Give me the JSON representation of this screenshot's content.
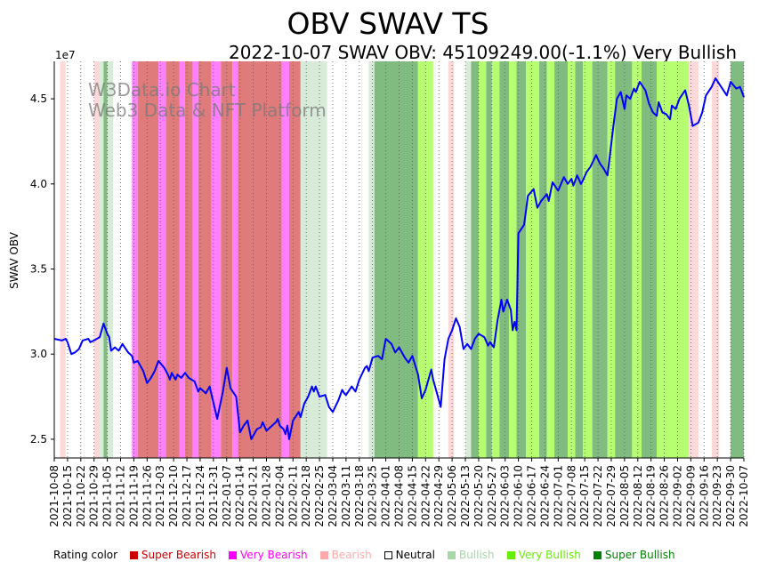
{
  "chart_data": {
    "type": "line",
    "title": "OBV SWAV TS",
    "subtitle": "2022-10-07 SWAV OBV: 45109249.00(-1.1%) Very Bullish",
    "ylabel": "SWAV OBV",
    "y_multiplier_label": "1e7",
    "ylim": [
      2.39,
      4.72
    ],
    "y_ticks": [
      2.5,
      3.0,
      3.5,
      4.0,
      4.5
    ],
    "y_tick_labels": [
      "2.5",
      "3.0",
      "3.5",
      "4.0",
      "4.5"
    ],
    "x_start": "2021-10-08",
    "x_end": "2022-10-07",
    "x_tick_labels": [
      "2021-10-08",
      "2021-10-15",
      "2021-10-22",
      "2021-10-29",
      "2021-11-05",
      "2021-11-12",
      "2021-11-19",
      "2021-11-26",
      "2021-12-03",
      "2021-12-10",
      "2021-12-17",
      "2021-12-24",
      "2021-12-31",
      "2022-01-07",
      "2022-01-14",
      "2022-01-21",
      "2022-01-28",
      "2022-02-04",
      "2022-02-11",
      "2022-02-18",
      "2022-02-25",
      "2022-03-04",
      "2022-03-11",
      "2022-03-18",
      "2022-03-25",
      "2022-04-01",
      "2022-04-08",
      "2022-04-15",
      "2022-04-22",
      "2022-04-29",
      "2022-05-06",
      "2022-05-13",
      "2022-05-20",
      "2022-05-27",
      "2022-06-03",
      "2022-06-10",
      "2022-06-17",
      "2022-06-24",
      "2022-07-01",
      "2022-07-08",
      "2022-07-15",
      "2022-07-22",
      "2022-07-29",
      "2022-08-05",
      "2022-08-12",
      "2022-08-19",
      "2022-08-26",
      "2022-09-02",
      "2022-09-09",
      "2022-09-16",
      "2022-09-23",
      "2022-09-30",
      "2022-10-07"
    ],
    "series": [
      {
        "name": "SWAV OBV",
        "color": "#0000ff",
        "points": [
          [
            "2021-10-08",
            3.09
          ],
          [
            "2021-10-12",
            3.08
          ],
          [
            "2021-10-14",
            3.09
          ],
          [
            "2021-10-15",
            3.07
          ],
          [
            "2021-10-17",
            3.0
          ],
          [
            "2021-10-19",
            3.01
          ],
          [
            "2021-10-21",
            3.03
          ],
          [
            "2021-10-23",
            3.08
          ],
          [
            "2021-10-26",
            3.09
          ],
          [
            "2021-10-27",
            3.07
          ],
          [
            "2021-10-29",
            3.08
          ],
          [
            "2021-11-01",
            3.1
          ],
          [
            "2021-11-03",
            3.18
          ],
          [
            "2021-11-05",
            3.12
          ],
          [
            "2021-11-06",
            3.1
          ],
          [
            "2021-11-07",
            3.02
          ],
          [
            "2021-11-09",
            3.04
          ],
          [
            "2021-11-11",
            3.02
          ],
          [
            "2021-11-13",
            3.06
          ],
          [
            "2021-11-16",
            3.01
          ],
          [
            "2021-11-18",
            2.99
          ],
          [
            "2021-11-19",
            2.95
          ],
          [
            "2021-11-21",
            2.96
          ],
          [
            "2021-11-24",
            2.9
          ],
          [
            "2021-11-26",
            2.83
          ],
          [
            "2021-11-28",
            2.86
          ],
          [
            "2021-11-30",
            2.9
          ],
          [
            "2021-12-02",
            2.96
          ],
          [
            "2021-12-05",
            2.92
          ],
          [
            "2021-12-07",
            2.88
          ],
          [
            "2021-12-08",
            2.85
          ],
          [
            "2021-12-09",
            2.89
          ],
          [
            "2021-12-11",
            2.85
          ],
          [
            "2021-12-12",
            2.88
          ],
          [
            "2021-12-14",
            2.86
          ],
          [
            "2021-12-16",
            2.89
          ],
          [
            "2021-12-18",
            2.86
          ],
          [
            "2021-12-21",
            2.84
          ],
          [
            "2021-12-23",
            2.78
          ],
          [
            "2021-12-24",
            2.8
          ],
          [
            "2021-12-27",
            2.77
          ],
          [
            "2021-12-29",
            2.81
          ],
          [
            "2022-01-02",
            2.62
          ],
          [
            "2022-01-05",
            2.78
          ],
          [
            "2022-01-07",
            2.92
          ],
          [
            "2022-01-09",
            2.8
          ],
          [
            "2022-01-12",
            2.75
          ],
          [
            "2022-01-13",
            2.65
          ],
          [
            "2022-01-14",
            2.54
          ],
          [
            "2022-01-16",
            2.58
          ],
          [
            "2022-01-18",
            2.61
          ],
          [
            "2022-01-20",
            2.5
          ],
          [
            "2022-01-23",
            2.56
          ],
          [
            "2022-01-25",
            2.57
          ],
          [
            "2022-01-26",
            2.6
          ],
          [
            "2022-01-28",
            2.55
          ],
          [
            "2022-01-31",
            2.58
          ],
          [
            "2022-02-02",
            2.6
          ],
          [
            "2022-02-03",
            2.62
          ],
          [
            "2022-02-04",
            2.58
          ],
          [
            "2022-02-06",
            2.56
          ],
          [
            "2022-02-07",
            2.53
          ],
          [
            "2022-02-08",
            2.58
          ],
          [
            "2022-02-09",
            2.5
          ],
          [
            "2022-02-11",
            2.61
          ],
          [
            "2022-02-14",
            2.66
          ],
          [
            "2022-02-15",
            2.63
          ],
          [
            "2022-02-17",
            2.71
          ],
          [
            "2022-02-19",
            2.75
          ],
          [
            "2022-02-21",
            2.81
          ],
          [
            "2022-02-22",
            2.78
          ],
          [
            "2022-02-23",
            2.81
          ],
          [
            "2022-02-25",
            2.75
          ],
          [
            "2022-02-28",
            2.76
          ],
          [
            "2022-03-02",
            2.69
          ],
          [
            "2022-03-04",
            2.66
          ],
          [
            "2022-03-07",
            2.73
          ],
          [
            "2022-03-09",
            2.79
          ],
          [
            "2022-03-10",
            2.77
          ],
          [
            "2022-03-11",
            2.76
          ],
          [
            "2022-03-14",
            2.81
          ],
          [
            "2022-03-16",
            2.78
          ],
          [
            "2022-03-18",
            2.85
          ],
          [
            "2022-03-21",
            2.92
          ],
          [
            "2022-03-22",
            2.93
          ],
          [
            "2022-03-23",
            2.9
          ],
          [
            "2022-03-25",
            2.98
          ],
          [
            "2022-03-28",
            2.99
          ],
          [
            "2022-03-30",
            2.97
          ],
          [
            "2022-04-01",
            3.09
          ],
          [
            "2022-04-04",
            3.06
          ],
          [
            "2022-04-06",
            3.01
          ],
          [
            "2022-04-08",
            3.04
          ],
          [
            "2022-04-11",
            2.98
          ],
          [
            "2022-04-13",
            2.95
          ],
          [
            "2022-04-15",
            2.99
          ],
          [
            "2022-04-18",
            2.88
          ],
          [
            "2022-04-20",
            2.74
          ],
          [
            "2022-04-22",
            2.79
          ],
          [
            "2022-04-25",
            2.91
          ],
          [
            "2022-04-26",
            2.85
          ],
          [
            "2022-04-28",
            2.77
          ],
          [
            "2022-04-30",
            2.69
          ],
          [
            "2022-05-02",
            2.97
          ],
          [
            "2022-05-04",
            3.09
          ],
          [
            "2022-05-06",
            3.14
          ],
          [
            "2022-05-08",
            3.21
          ],
          [
            "2022-05-10",
            3.16
          ],
          [
            "2022-05-12",
            3.03
          ],
          [
            "2022-05-14",
            3.06
          ],
          [
            "2022-05-16",
            3.03
          ],
          [
            "2022-05-18",
            3.09
          ],
          [
            "2022-05-20",
            3.12
          ],
          [
            "2022-05-23",
            3.1
          ],
          [
            "2022-05-25",
            3.05
          ],
          [
            "2022-05-26",
            3.07
          ],
          [
            "2022-05-28",
            3.04
          ],
          [
            "2022-05-30",
            3.2
          ],
          [
            "2022-06-01",
            3.32
          ],
          [
            "2022-06-02",
            3.25
          ],
          [
            "2022-06-04",
            3.32
          ],
          [
            "2022-06-06",
            3.26
          ],
          [
            "2022-06-07",
            3.14
          ],
          [
            "2022-06-08",
            3.19
          ],
          [
            "2022-06-09",
            3.14
          ],
          [
            "2022-06-10",
            3.71
          ],
          [
            "2022-06-13",
            3.76
          ],
          [
            "2022-06-15",
            3.93
          ],
          [
            "2022-06-18",
            3.97
          ],
          [
            "2022-06-20",
            3.86
          ],
          [
            "2022-06-22",
            3.9
          ],
          [
            "2022-06-25",
            3.94
          ],
          [
            "2022-06-26",
            3.9
          ],
          [
            "2022-06-28",
            4.01
          ],
          [
            "2022-07-01",
            3.96
          ],
          [
            "2022-07-04",
            4.04
          ],
          [
            "2022-07-06",
            4.0
          ],
          [
            "2022-07-08",
            4.03
          ],
          [
            "2022-07-09",
            3.99
          ],
          [
            "2022-07-11",
            4.05
          ],
          [
            "2022-07-13",
            4.0
          ],
          [
            "2022-07-14",
            4.02
          ],
          [
            "2022-07-16",
            4.07
          ],
          [
            "2022-07-18",
            4.1
          ],
          [
            "2022-07-21",
            4.17
          ],
          [
            "2022-07-23",
            4.12
          ],
          [
            "2022-07-25",
            4.09
          ],
          [
            "2022-07-27",
            4.05
          ],
          [
            "2022-07-28",
            4.14
          ],
          [
            "2022-07-30",
            4.33
          ],
          [
            "2022-08-01",
            4.5
          ],
          [
            "2022-08-03",
            4.54
          ],
          [
            "2022-08-05",
            4.44
          ],
          [
            "2022-08-06",
            4.52
          ],
          [
            "2022-08-08",
            4.5
          ],
          [
            "2022-08-10",
            4.56
          ],
          [
            "2022-08-11",
            4.54
          ],
          [
            "2022-08-13",
            4.6
          ],
          [
            "2022-08-16",
            4.55
          ],
          [
            "2022-08-18",
            4.47
          ],
          [
            "2022-08-20",
            4.42
          ],
          [
            "2022-08-22",
            4.4
          ],
          [
            "2022-08-23",
            4.48
          ],
          [
            "2022-08-25",
            4.42
          ],
          [
            "2022-08-27",
            4.41
          ],
          [
            "2022-08-29",
            4.38
          ],
          [
            "2022-08-30",
            4.46
          ],
          [
            "2022-09-01",
            4.44
          ],
          [
            "2022-09-03",
            4.5
          ],
          [
            "2022-09-06",
            4.55
          ],
          [
            "2022-09-08",
            4.46
          ],
          [
            "2022-09-10",
            4.34
          ],
          [
            "2022-09-13",
            4.36
          ],
          [
            "2022-09-15",
            4.42
          ],
          [
            "2022-09-17",
            4.52
          ],
          [
            "2022-09-20",
            4.57
          ],
          [
            "2022-09-22",
            4.62
          ],
          [
            "2022-09-25",
            4.57
          ],
          [
            "2022-09-28",
            4.52
          ],
          [
            "2022-09-30",
            4.6
          ],
          [
            "2022-10-03",
            4.56
          ],
          [
            "2022-10-05",
            4.57
          ],
          [
            "2022-10-07",
            4.51
          ]
        ]
      }
    ],
    "rating_bands": [
      [
        "2021-10-08",
        "2021-10-11",
        "Neutral"
      ],
      [
        "2021-10-11",
        "2021-10-14",
        "Bearish"
      ],
      [
        "2021-10-14",
        "2021-10-29",
        "Neutral"
      ],
      [
        "2021-10-29",
        "2021-11-01",
        "Bearish"
      ],
      [
        "2021-11-01",
        "2021-11-03",
        "Bullish"
      ],
      [
        "2021-11-03",
        "2021-11-05",
        "Super Bullish"
      ],
      [
        "2021-11-05",
        "2021-11-08",
        "Bullish"
      ],
      [
        "2021-11-08",
        "2021-11-18",
        "Neutral"
      ],
      [
        "2021-11-18",
        "2021-11-21",
        "Very Bearish"
      ],
      [
        "2021-11-21",
        "2021-12-02",
        "Super Bearish"
      ],
      [
        "2021-12-02",
        "2021-12-06",
        "Very Bearish"
      ],
      [
        "2021-12-06",
        "2021-12-13",
        "Super Bearish"
      ],
      [
        "2021-12-13",
        "2021-12-16",
        "Very Bearish"
      ],
      [
        "2021-12-16",
        "2021-12-20",
        "Super Bearish"
      ],
      [
        "2021-12-20",
        "2021-12-23",
        "Very Bearish"
      ],
      [
        "2021-12-23",
        "2021-12-30",
        "Super Bearish"
      ],
      [
        "2021-12-30",
        "2022-01-04",
        "Very Bearish"
      ],
      [
        "2022-01-04",
        "2022-01-10",
        "Super Bearish"
      ],
      [
        "2022-01-10",
        "2022-01-13",
        "Very Bearish"
      ],
      [
        "2022-01-13",
        "2022-02-05",
        "Super Bearish"
      ],
      [
        "2022-02-05",
        "2022-02-09",
        "Very Bearish"
      ],
      [
        "2022-02-09",
        "2022-02-15",
        "Super Bearish"
      ],
      [
        "2022-02-15",
        "2022-03-01",
        "Bullish"
      ],
      [
        "2022-03-01",
        "2022-03-23",
        "Neutral"
      ],
      [
        "2022-03-23",
        "2022-03-26",
        "Bullish"
      ],
      [
        "2022-03-26",
        "2022-04-18",
        "Super Bullish"
      ],
      [
        "2022-04-18",
        "2022-04-26",
        "Very Bullish"
      ],
      [
        "2022-04-26",
        "2022-05-04",
        "Neutral"
      ],
      [
        "2022-05-04",
        "2022-05-07",
        "Bearish"
      ],
      [
        "2022-05-07",
        "2022-05-13",
        "Neutral"
      ],
      [
        "2022-05-13",
        "2022-05-16",
        "Bullish"
      ],
      [
        "2022-05-16",
        "2022-05-20",
        "Super Bullish"
      ],
      [
        "2022-05-20",
        "2022-05-24",
        "Very Bullish"
      ],
      [
        "2022-05-24",
        "2022-05-27",
        "Super Bullish"
      ],
      [
        "2022-05-27",
        "2022-05-31",
        "Very Bullish"
      ],
      [
        "2022-05-31",
        "2022-06-05",
        "Super Bullish"
      ],
      [
        "2022-06-05",
        "2022-06-09",
        "Very Bullish"
      ],
      [
        "2022-06-09",
        "2022-06-14",
        "Super Bullish"
      ],
      [
        "2022-06-14",
        "2022-06-21",
        "Very Bullish"
      ],
      [
        "2022-06-21",
        "2022-06-25",
        "Super Bullish"
      ],
      [
        "2022-06-25",
        "2022-06-29",
        "Very Bullish"
      ],
      [
        "2022-06-29",
        "2022-07-06",
        "Super Bullish"
      ],
      [
        "2022-07-06",
        "2022-07-10",
        "Very Bullish"
      ],
      [
        "2022-07-10",
        "2022-07-14",
        "Super Bullish"
      ],
      [
        "2022-07-14",
        "2022-07-19",
        "Very Bullish"
      ],
      [
        "2022-07-19",
        "2022-07-27",
        "Super Bullish"
      ],
      [
        "2022-07-27",
        "2022-07-31",
        "Very Bullish"
      ],
      [
        "2022-07-31",
        "2022-08-09",
        "Super Bullish"
      ],
      [
        "2022-08-09",
        "2022-08-14",
        "Very Bullish"
      ],
      [
        "2022-08-14",
        "2022-08-22",
        "Super Bullish"
      ],
      [
        "2022-08-22",
        "2022-09-08",
        "Very Bullish"
      ],
      [
        "2022-09-08",
        "2022-09-13",
        "Bearish"
      ],
      [
        "2022-09-13",
        "2022-09-20",
        "Neutral"
      ],
      [
        "2022-09-20",
        "2022-09-24",
        "Bearish"
      ],
      [
        "2022-09-24",
        "2022-09-30",
        "Neutral"
      ],
      [
        "2022-09-30",
        "2022-10-07",
        "Super Bullish"
      ]
    ],
    "watermark": [
      "W3Data.io Chart",
      "Web3 Data & NFT Platform"
    ],
    "legend_position": "bottom"
  },
  "legend": {
    "label": "Rating color",
    "items": [
      {
        "name": "Super Bearish",
        "color": "#cc0000",
        "band": "#e07b7b"
      },
      {
        "name": "Very Bearish",
        "color": "#ff00ff",
        "band": "#ff80ff"
      },
      {
        "name": "Bearish",
        "color": "#ffaaaa",
        "band": "#ffd9d9"
      },
      {
        "name": "Neutral",
        "color": "#ffffff",
        "band": "#ffffff"
      },
      {
        "name": "Bullish",
        "color": "#a8d8a8",
        "band": "#d8ebd8"
      },
      {
        "name": "Very Bullish",
        "color": "#66ee00",
        "band": "#b6ff70"
      },
      {
        "name": "Super Bullish",
        "color": "#008000",
        "band": "#80bb80"
      }
    ]
  }
}
